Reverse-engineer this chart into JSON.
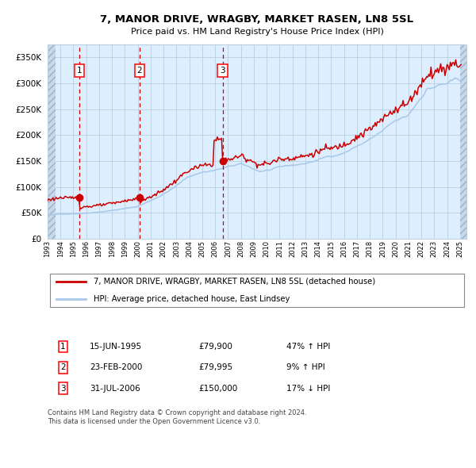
{
  "title": "7, MANOR DRIVE, WRAGBY, MARKET RASEN, LN8 5SL",
  "subtitle": "Price paid vs. HM Land Registry's House Price Index (HPI)",
  "transactions": [
    {
      "num": 1,
      "date": "15-JUN-1995",
      "price": 79900,
      "year": 1995.45,
      "hpi_rel": "47% ↑ HPI"
    },
    {
      "num": 2,
      "date": "23-FEB-2000",
      "price": 79995,
      "year": 2000.14,
      "hpi_rel": "9% ↑ HPI"
    },
    {
      "num": 3,
      "date": "31-JUL-2006",
      "price": 150000,
      "year": 2006.58,
      "hpi_rel": "17% ↓ HPI"
    }
  ],
  "legend_house": "7, MANOR DRIVE, WRAGBY, MARKET RASEN, LN8 5SL (detached house)",
  "legend_hpi": "HPI: Average price, detached house, East Lindsey",
  "footer1": "Contains HM Land Registry data © Crown copyright and database right 2024.",
  "footer2": "This data is licensed under the Open Government Licence v3.0.",
  "hpi_color": "#a8c8e8",
  "house_color": "#cc0000",
  "bg_color": "#ddeeff",
  "hatch_color": "#c8d8ea",
  "grid_color": "#b8cede",
  "ylim": [
    0,
    375000
  ],
  "yticks": [
    0,
    50000,
    100000,
    150000,
    200000,
    250000,
    300000,
    350000
  ],
  "xmin": 1993.0,
  "xmax": 2025.5
}
